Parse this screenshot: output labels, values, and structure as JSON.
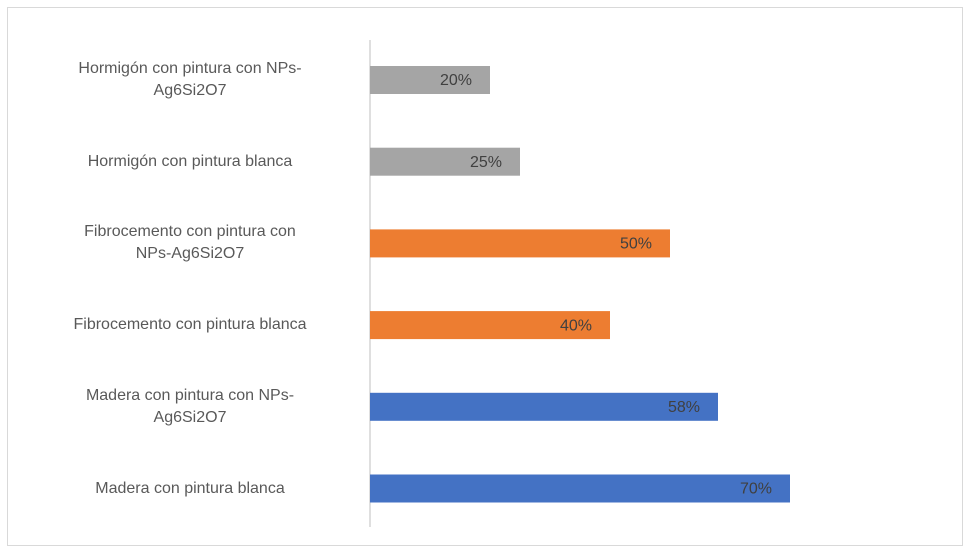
{
  "chart_data": {
    "type": "bar",
    "orientation": "horizontal",
    "categories": [
      "Hormigón con pintura con NPs-\nAg6Si2O7",
      "Hormigón con pintura blanca",
      "Fibrocemento con pintura con\nNPs-Ag6Si2O7",
      "Fibrocemento con pintura blanca",
      "Madera con pintura con NPs-\nAg6Si2O7",
      "Madera con pintura blanca"
    ],
    "values": [
      20,
      25,
      50,
      40,
      58,
      70
    ],
    "value_labels": [
      "20%",
      "25%",
      "50%",
      "40%",
      "58%",
      "70%"
    ],
    "colors": [
      "#a5a5a5",
      "#a5a5a5",
      "#ed7d31",
      "#ed7d31",
      "#4472c4",
      "#4472c4"
    ]
  }
}
